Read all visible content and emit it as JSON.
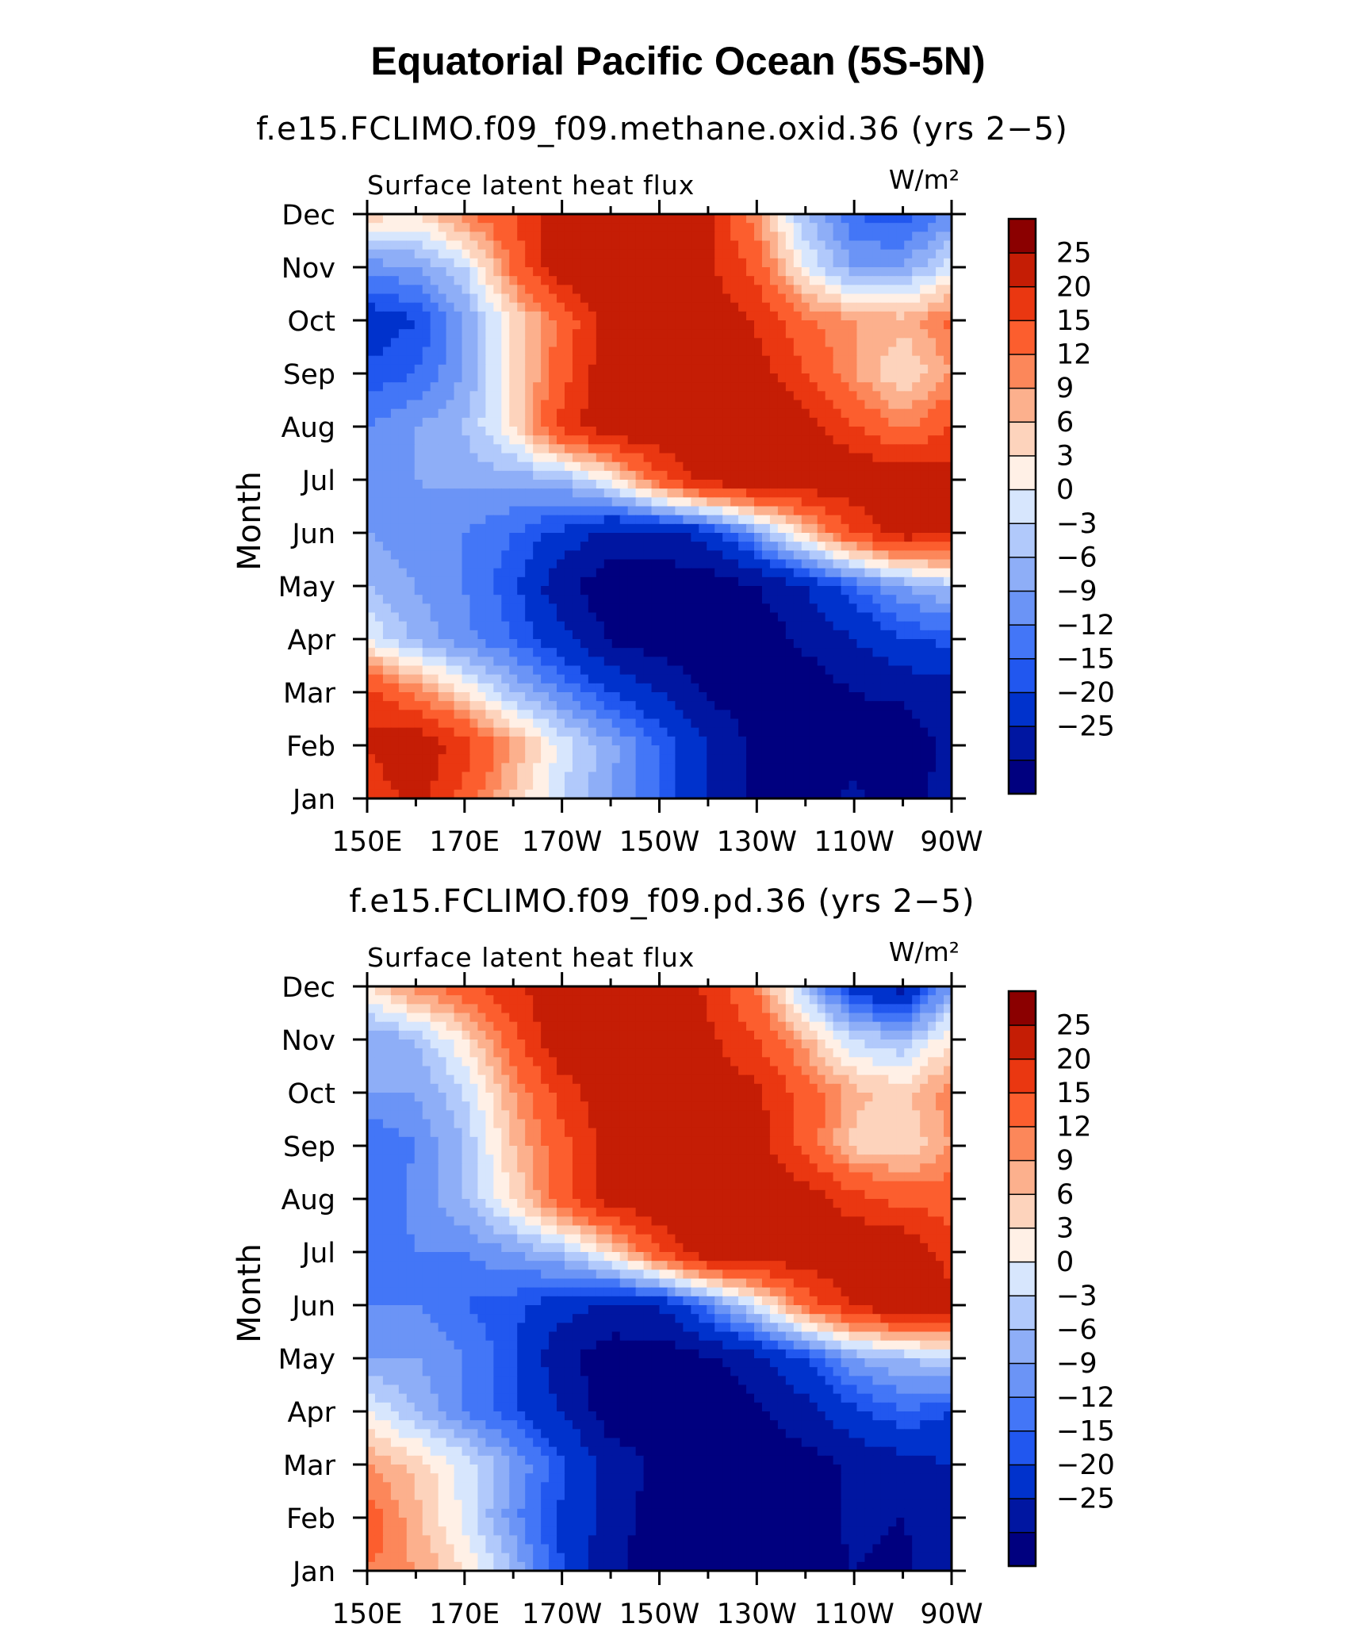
{
  "title": "Equatorial Pacific Ocean (5S-5N)",
  "colors": {
    "levels": [
      "#00007f",
      "#0016a1",
      "#0032cc",
      "#2157ef",
      "#4376f7",
      "#6b94f6",
      "#8eaef7",
      "#b1c9fb",
      "#d7e6fd",
      "#fff0e6",
      "#fdd3bc",
      "#fcb08d",
      "#fc875a",
      "#fc5e2e",
      "#ea3711",
      "#c51d05",
      "#8b0000"
    ]
  },
  "chart_data": [
    {
      "type": "heatmap",
      "title": "f.e15.FCLIMO.f09_f09.methane.oxid.36 (yrs 2−5)",
      "panel_label": "Surface latent heat flux",
      "units": "W/m²",
      "xlabel": "",
      "ylabel": "Month",
      "x_ticks": [
        "150E",
        "170E",
        "170W",
        "150W",
        "130W",
        "110W",
        "90W"
      ],
      "y_ticks": [
        "Jan",
        "Feb",
        "Mar",
        "Apr",
        "May",
        "Jun",
        "Jul",
        "Aug",
        "Sep",
        "Oct",
        "Nov",
        "Dec"
      ],
      "colorbar_labels": [
        "25",
        "20",
        "15",
        "12",
        "9",
        "6",
        "3",
        "0",
        "−3",
        "−6",
        "−9",
        "−12",
        "−15",
        "−20",
        "−25"
      ],
      "contour_levels": [
        -25,
        -20,
        -15,
        -12,
        -9,
        -6,
        -3,
        0,
        3,
        6,
        9,
        12,
        15,
        20,
        25
      ],
      "longitudes": [
        "150E",
        "160E",
        "170E",
        "180",
        "170W",
        "160W",
        "150W",
        "140W",
        "130W",
        "120W",
        "110W",
        "100W",
        "90W"
      ],
      "values": [
        [
          20,
          28,
          18,
          8,
          0,
          -6,
          -12,
          -20,
          -26,
          -28,
          -24,
          -28,
          -22
        ],
        [
          26,
          30,
          22,
          12,
          2,
          -5,
          -12,
          -20,
          -26,
          -28,
          -27,
          -28,
          -24
        ],
        [
          22,
          14,
          6,
          -3,
          -9,
          -15,
          -20,
          -26,
          -28,
          -28,
          -25,
          -24,
          -22
        ],
        [
          3,
          -4,
          -8,
          -12,
          -18,
          -26,
          -28,
          -28,
          -28,
          -24,
          -20,
          -15,
          -14
        ],
        [
          -3,
          -6,
          -9,
          -14,
          -24,
          -28,
          -28,
          -28,
          -25,
          -20,
          -12,
          -6,
          -2
        ],
        [
          -6,
          -8,
          -9,
          -12,
          -16,
          -22,
          -22,
          -18,
          -6,
          8,
          20,
          28,
          26
        ],
        [
          -6,
          -6,
          -5,
          -5,
          -4,
          4,
          18,
          28,
          30,
          30,
          30,
          30,
          28
        ],
        [
          -9,
          -6,
          -3,
          6,
          22,
          30,
          30,
          30,
          30,
          28,
          20,
          14,
          20
        ],
        [
          -14,
          -12,
          -6,
          6,
          18,
          30,
          30,
          30,
          28,
          20,
          12,
          6,
          12
        ],
        [
          -18,
          -15,
          -6,
          6,
          16,
          28,
          30,
          30,
          24,
          16,
          12,
          10,
          16
        ],
        [
          -8,
          -6,
          0,
          16,
          30,
          30,
          30,
          26,
          18,
          3,
          -6,
          -6,
          2
        ],
        [
          8,
          6,
          14,
          20,
          30,
          30,
          30,
          26,
          12,
          -3,
          -12,
          -14,
          -8
        ]
      ]
    },
    {
      "type": "heatmap",
      "title": "f.e15.FCLIMO.f09_f09.pd.36 (yrs 2−5)",
      "panel_label": "Surface latent heat flux",
      "units": "W/m²",
      "xlabel": "",
      "ylabel": "Month",
      "x_ticks": [
        "150E",
        "170E",
        "170W",
        "150W",
        "130W",
        "110W",
        "90W"
      ],
      "y_ticks": [
        "Jan",
        "Feb",
        "Mar",
        "Apr",
        "May",
        "Jun",
        "Jul",
        "Aug",
        "Sep",
        "Oct",
        "Nov",
        "Dec"
      ],
      "colorbar_labels": [
        "25",
        "20",
        "15",
        "12",
        "9",
        "6",
        "3",
        "0",
        "−3",
        "−6",
        "−9",
        "−12",
        "−15",
        "−20",
        "−25"
      ],
      "contour_levels": [
        -25,
        -20,
        -15,
        -12,
        -9,
        -6,
        -3,
        0,
        3,
        6,
        9,
        12,
        15,
        20,
        25
      ],
      "longitudes": [
        "150E",
        "160E",
        "170E",
        "180",
        "170W",
        "160W",
        "150W",
        "140W",
        "130W",
        "120W",
        "110W",
        "100W",
        "90W"
      ],
      "values": [
        [
          15,
          12,
          6,
          -3,
          -15,
          -24,
          -28,
          -28,
          -28,
          -27,
          -25,
          -26,
          -22
        ],
        [
          18,
          10,
          2,
          -8,
          -16,
          -22,
          -28,
          -28,
          -28,
          -27,
          -24,
          -25,
          -23
        ],
        [
          12,
          8,
          2,
          -6,
          -14,
          -22,
          -26,
          -28,
          -28,
          -27,
          -24,
          -22,
          -20
        ],
        [
          3,
          -3,
          -9,
          -14,
          -20,
          -28,
          -28,
          -28,
          -26,
          -22,
          -16,
          -12,
          -15
        ],
        [
          -6,
          -6,
          -9,
          -14,
          -24,
          -28,
          -28,
          -26,
          -22,
          -15,
          -6,
          -3,
          0
        ],
        [
          -9,
          -9,
          -12,
          -14,
          -18,
          -21,
          -20,
          -10,
          2,
          16,
          26,
          30,
          28
        ],
        [
          -12,
          -9,
          -9,
          -6,
          -2,
          6,
          20,
          30,
          30,
          30,
          30,
          30,
          22
        ],
        [
          -12,
          -8,
          -3,
          6,
          18,
          28,
          30,
          30,
          30,
          28,
          22,
          18,
          18
        ],
        [
          -12,
          -9,
          -3,
          9,
          18,
          28,
          30,
          30,
          28,
          18,
          8,
          6,
          12
        ],
        [
          -6,
          -6,
          0,
          12,
          22,
          30,
          30,
          30,
          26,
          18,
          10,
          8,
          14
        ],
        [
          -6,
          -3,
          6,
          18,
          30,
          30,
          30,
          26,
          20,
          10,
          0,
          -3,
          6
        ],
        [
          6,
          14,
          18,
          24,
          30,
          30,
          30,
          24,
          14,
          -3,
          -18,
          -22,
          -6
        ]
      ]
    }
  ]
}
